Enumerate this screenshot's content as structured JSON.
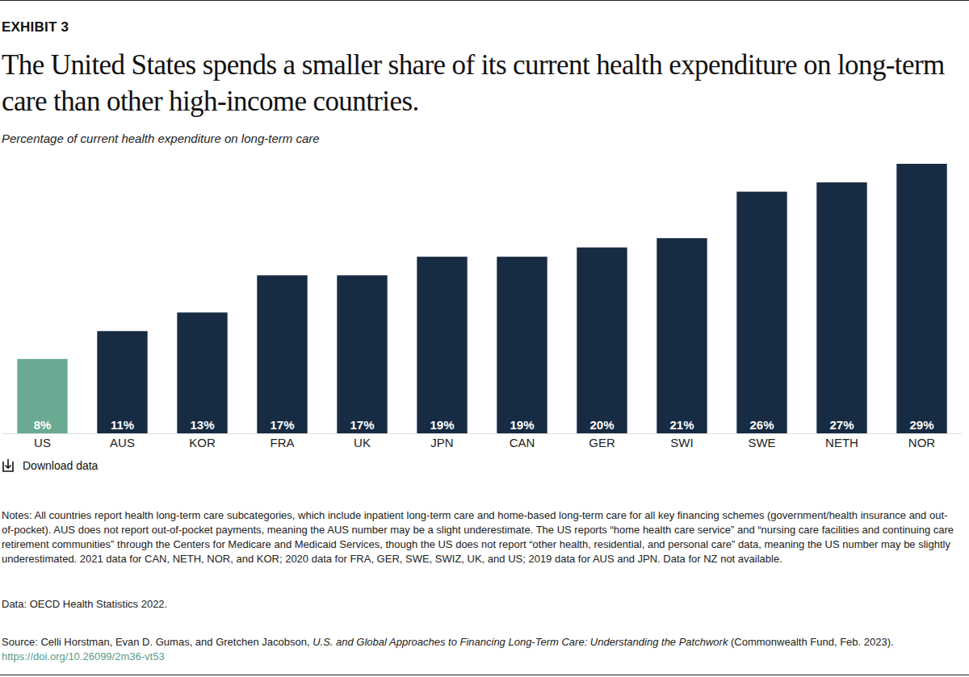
{
  "header": {
    "label": "EXHIBIT 3"
  },
  "chart_data": {
    "type": "bar",
    "title": "The United States spends a smaller share of its current health expenditure on long-term care than other high-income countries.",
    "subtitle": "Percentage of current health expenditure on long-term care",
    "categories": [
      "US",
      "AUS",
      "KOR",
      "FRA",
      "UK",
      "JPN",
      "CAN",
      "GER",
      "SWI",
      "SWE",
      "NETH",
      "NOR"
    ],
    "values": [
      8,
      11,
      13,
      17,
      17,
      19,
      19,
      20,
      21,
      26,
      27,
      29
    ],
    "value_labels": [
      "8%",
      "11%",
      "13%",
      "17%",
      "17%",
      "19%",
      "19%",
      "20%",
      "21%",
      "26%",
      "27%",
      "29%"
    ],
    "colors": [
      "#6aaa93",
      "#172b42",
      "#172b42",
      "#172b42",
      "#172b42",
      "#172b42",
      "#172b42",
      "#172b42",
      "#172b42",
      "#172b42",
      "#172b42",
      "#172b42"
    ],
    "data_labels": true,
    "tick_labels": "x"
  },
  "download": {
    "label": "Download data"
  },
  "notes": "Notes: All countries report health long-term care subcategories, which include inpatient long-term care and home-based long-term care for all key financing schemes (government/health insurance and out-of-pocket). AUS does not report out-of-pocket payments, meaning the AUS number may be a slight underestimate. The US reports “home health care service” and “nursing care facilities and continuing care retirement communities” through the Centers for Medicare and Medicaid Services, though the US does not report “other health, residential, and personal care” data, meaning the US number may be slightly underestimated. 2021 data for CAN, NETH, NOR, and KOR; 2020 data for FRA, GER, SWE, SWIZ, UK, and US; 2019 data for AUS and JPN. Data for NZ not available.",
  "data_source": "Data: OECD Health Statistics 2022.",
  "source": {
    "prefix": "Source: Celli Horstman, Evan D. Gumas, and Gretchen Jacobson, ",
    "title": "U.S. and Global Approaches to Financing Long-Term Care: Understanding the Patchwork",
    "suffix": " (Commonwealth Fund, Feb. 2023). ",
    "link": "https://doi.org/10.26099/2m36-vt53"
  }
}
